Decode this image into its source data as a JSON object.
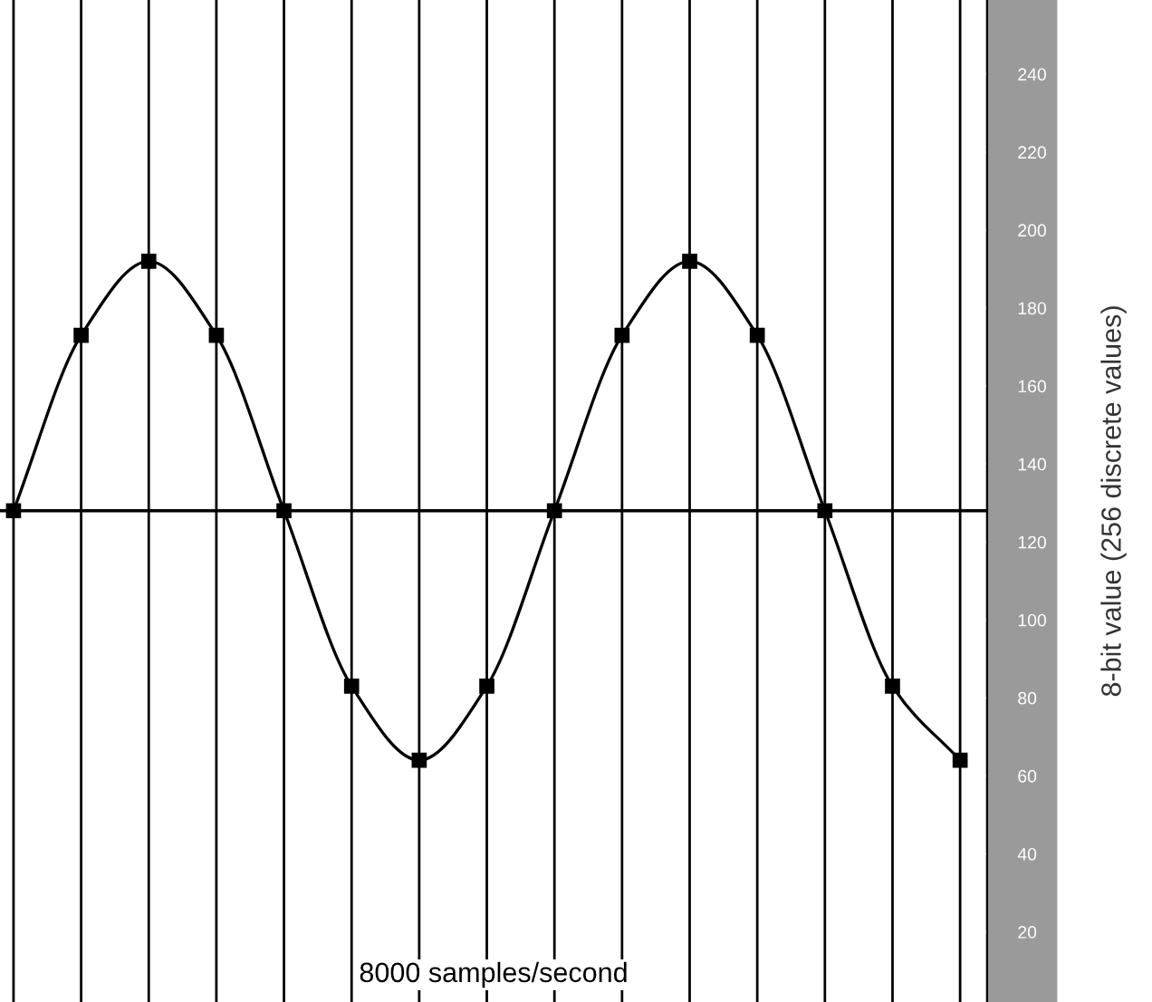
{
  "chart_data": {
    "type": "line",
    "categories": [
      null,
      null,
      null,
      null,
      null,
      null,
      null,
      null,
      null,
      null,
      null,
      null,
      null,
      null,
      null
    ],
    "series": [
      {
        "color": "#000000",
        "values": [
          128,
          173,
          192,
          173,
          128,
          83,
          64,
          83,
          128,
          173,
          192,
          173,
          128,
          83,
          64
        ]
      }
    ],
    "xlabel": "8000 samples/second",
    "ylabel": "8-bit value (256 discrete values)",
    "ylim": [
      2,
      259
    ],
    "yticks": [
      20,
      40,
      60,
      80,
      100,
      120,
      140,
      160,
      180,
      200,
      220,
      240
    ],
    "ref_lines": [
      {
        "axis": "y",
        "value": 128,
        "color": "#000000"
      }
    ],
    "grid": "x",
    "marker": "square",
    "line_style": "solid"
  }
}
